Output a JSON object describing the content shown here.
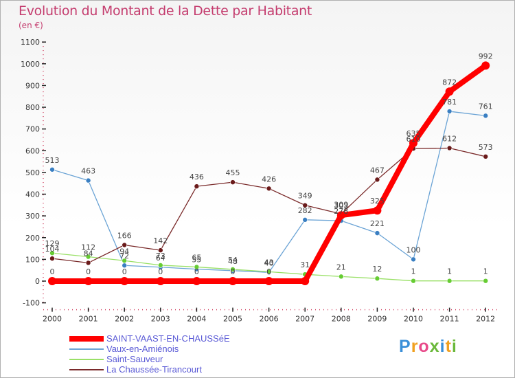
{
  "title": "Evolution du Montant de la Dette par Habitant",
  "subtitle": "(en €)",
  "logo": {
    "letters": [
      "P",
      "r",
      "o",
      "x",
      "i",
      "t",
      "i"
    ],
    "colors": [
      "#3a8fd8",
      "#f0a020",
      "#e84a8a",
      "#6ab83a",
      "#3a8fd8",
      "#f0a020",
      "#6ab83a"
    ]
  },
  "chart_data": {
    "type": "line",
    "x": [
      "2000",
      "2001",
      "2002",
      "2003",
      "2004",
      "2005",
      "2006",
      "2007",
      "2008",
      "2009",
      "2010",
      "2011",
      "2012"
    ],
    "ylim": [
      -100,
      1100
    ],
    "yticks": [
      -100,
      0,
      100,
      200,
      300,
      400,
      500,
      600,
      700,
      800,
      900,
      1000,
      1100
    ],
    "grid": false,
    "legend_position": "bottom-left",
    "series": [
      {
        "name": "SAINT-VAAST-EN-CHAUSSéE",
        "color": "#ff0000",
        "marker": "#ff0000",
        "width": 8,
        "radius": 6,
        "values": [
          0,
          0,
          0,
          0,
          0,
          0,
          0,
          0,
          303,
          325,
          635,
          872,
          992
        ]
      },
      {
        "name": "Vaux-en-Amiénois",
        "color": "#6aa3d5",
        "marker": "#3a7fc2",
        "width": 1.3,
        "radius": 3.5,
        "values": [
          513,
          463,
          72,
          64,
          55,
          48,
          40,
          282,
          278,
          221,
          100,
          781,
          761
        ]
      },
      {
        "name": "Saint-Sauveur",
        "color": "#99e066",
        "marker": "#66cc33",
        "width": 1.3,
        "radius": 3.5,
        "values": [
          129,
          112,
          94,
          73,
          65,
          54,
          43,
          31,
          21,
          12,
          1,
          1,
          1
        ]
      },
      {
        "name": "La Chaussée-Tirancourt",
        "color": "#7a2a2a",
        "marker": "#6a1a1a",
        "width": 1.3,
        "radius": 3.5,
        "values": [
          104,
          84,
          166,
          142,
          436,
          455,
          426,
          349,
          309,
          467,
          610,
          612,
          573
        ]
      }
    ],
    "data_labels": [
      [
        "0",
        "0",
        "0",
        "0",
        "0",
        "0",
        "0",
        "",
        "303",
        "325",
        "635",
        "872",
        "992"
      ],
      [
        "513",
        "463",
        "72",
        "64",
        "55",
        "48",
        "40",
        "282",
        "278",
        "221",
        "100",
        "781",
        "761"
      ],
      [
        "129",
        "112",
        "94",
        "73",
        "65",
        "54",
        "43",
        "31",
        "21",
        "12",
        "1",
        "1",
        "1"
      ],
      [
        "104",
        "84",
        "166",
        "142",
        "436",
        "455",
        "426",
        "349",
        "309",
        "467",
        "610",
        "612",
        "573"
      ]
    ]
  }
}
